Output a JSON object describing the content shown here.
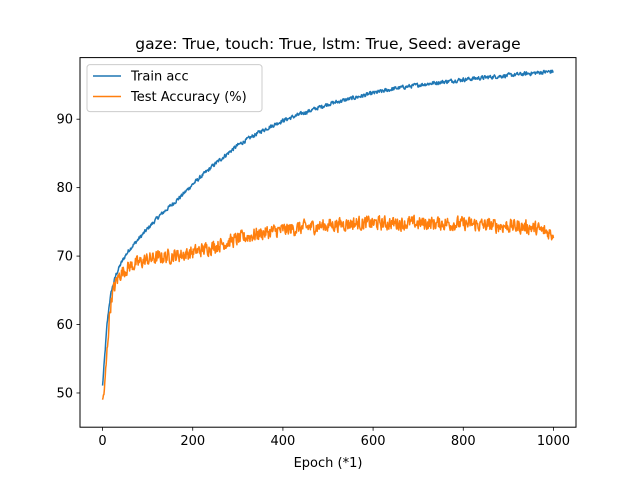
{
  "chart_data": {
    "type": "line",
    "title": "gaze: True, touch: True, lstm: True, Seed: average",
    "xlabel": "Epoch (*1)",
    "ylabel": "",
    "xlim": [
      -50,
      1050
    ],
    "ylim": [
      45,
      99
    ],
    "xticks": [
      0,
      200,
      400,
      600,
      800,
      1000
    ],
    "yticks": [
      50,
      60,
      70,
      80,
      90
    ],
    "grid": false,
    "legend_position": "upper-left",
    "series": [
      {
        "name": "Train acc",
        "color": "#1f77b4",
        "noise": 0.4,
        "x": [
          0,
          5,
          10,
          15,
          20,
          30,
          40,
          50,
          60,
          80,
          100,
          125,
          150,
          175,
          200,
          250,
          300,
          350,
          400,
          450,
          500,
          550,
          600,
          650,
          700,
          750,
          800,
          850,
          900,
          950,
          1000
        ],
        "y": [
          51,
          55.5,
          60,
          63,
          65,
          67.3,
          68.8,
          70,
          71,
          72.5,
          74,
          75.8,
          77.3,
          78.8,
          80.5,
          83.5,
          86.2,
          88.2,
          89.8,
          91,
          92.2,
          93,
          93.8,
          94.5,
          95,
          95.4,
          95.8,
          96.1,
          96.4,
          96.7,
          97
        ]
      },
      {
        "name": "Test Accuracy (%)",
        "color": "#ff7f0e",
        "noise": 1.4,
        "x": [
          0,
          5,
          10,
          15,
          20,
          30,
          40,
          50,
          60,
          80,
          100,
          125,
          150,
          175,
          200,
          250,
          300,
          350,
          400,
          450,
          500,
          550,
          600,
          650,
          700,
          750,
          800,
          850,
          900,
          950,
          1000
        ],
        "y": [
          48.5,
          51,
          56,
          61,
          64,
          66.2,
          67.5,
          68,
          68.5,
          69,
          69.5,
          69.8,
          70,
          70.2,
          70.5,
          71.5,
          72.5,
          73.3,
          73.8,
          74.2,
          74.5,
          74.8,
          74.8,
          74.8,
          74.8,
          74.8,
          74.7,
          74.5,
          74.4,
          74.2,
          73.2
        ]
      }
    ]
  }
}
